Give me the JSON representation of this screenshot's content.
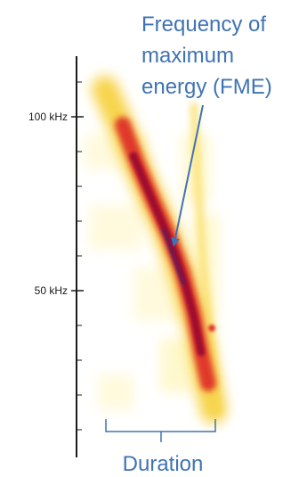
{
  "axis": {
    "ticks": [
      {
        "label": "100 kHz",
        "value": 100
      },
      {
        "label": "50 kHz",
        "value": 50
      }
    ]
  },
  "annotations": {
    "fme": {
      "lines": [
        "Frequency of",
        "maximum",
        "energy (FME)"
      ]
    },
    "duration": {
      "label": "Duration"
    }
  },
  "colors": {
    "annotation": "#3f73b5",
    "axis": "#1a1a1a",
    "spectrogram_core": "#a0102e",
    "spectrogram_mid": "#e0392c",
    "spectrogram_edge": "#f7d44c",
    "spectrogram_faint": "#fff3a6"
  }
}
